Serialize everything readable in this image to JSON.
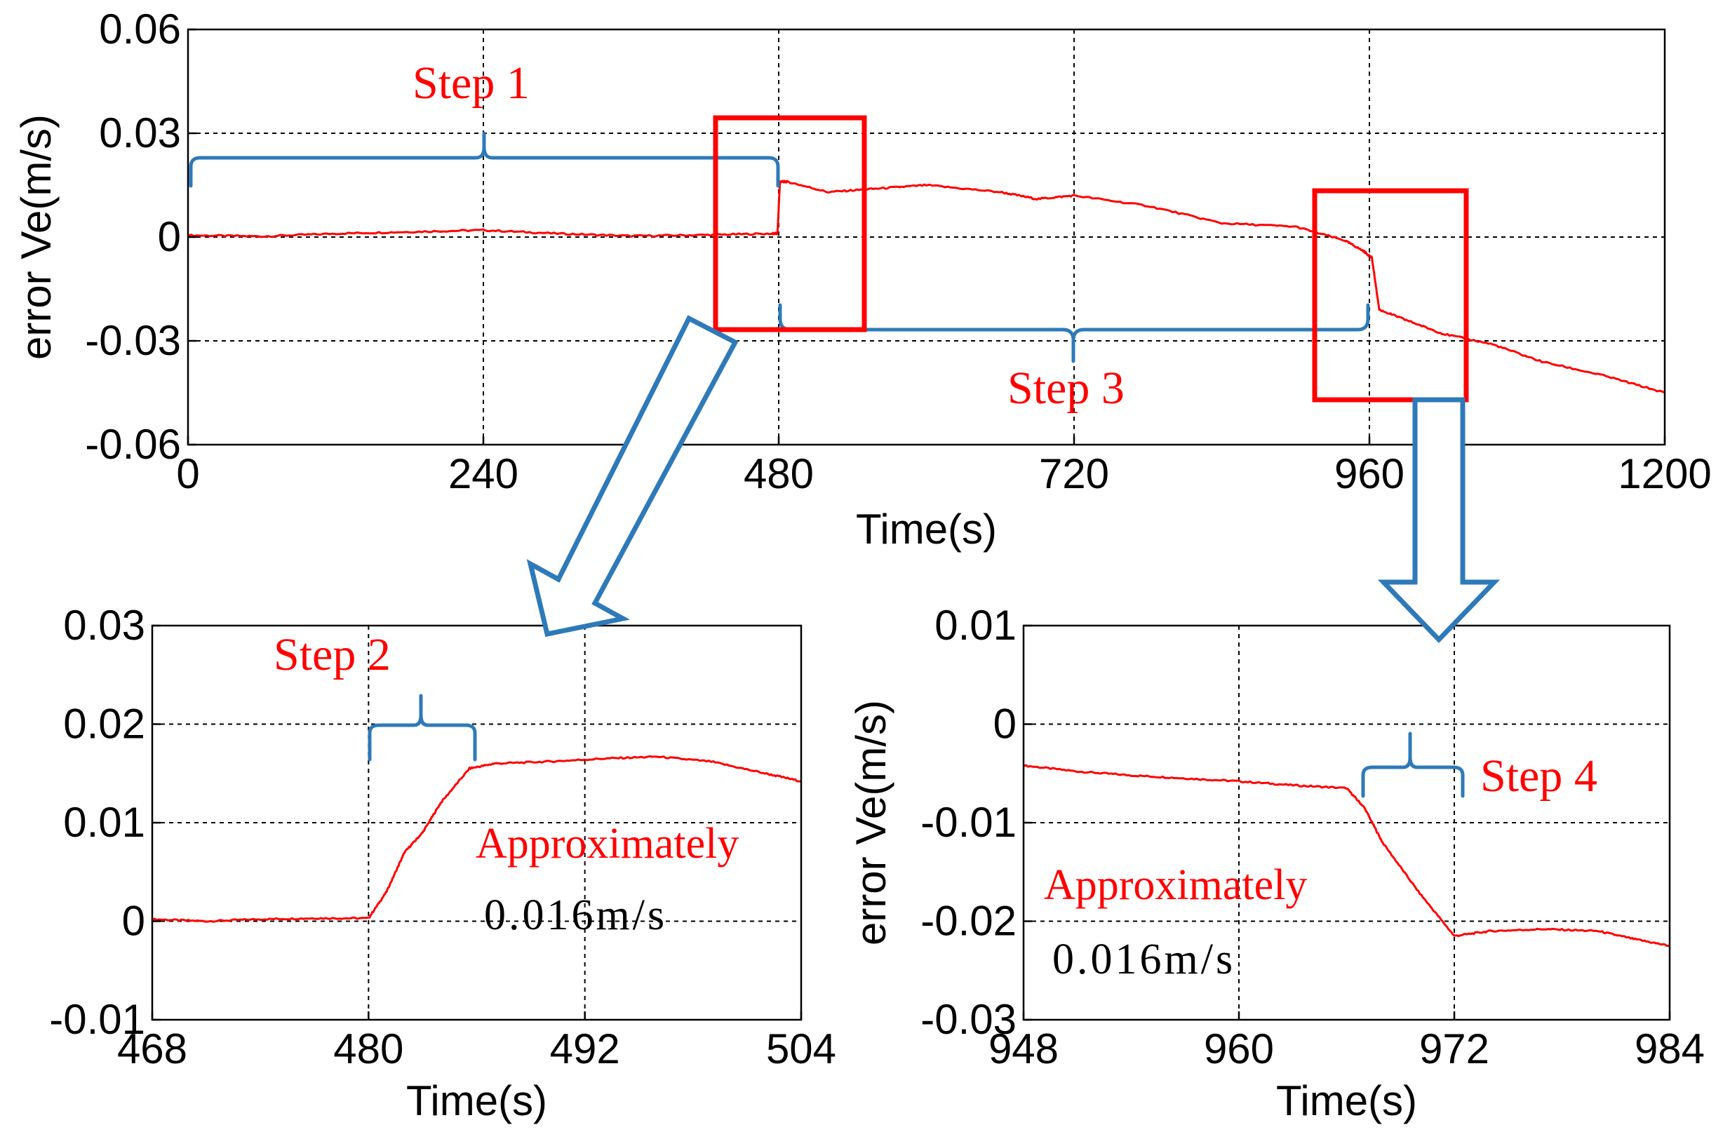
{
  "chart_data": [
    {
      "type": "line",
      "id": "main",
      "xlabel": "Time(s)",
      "ylabel": "error Ve(m/s)",
      "xlim": [
        0,
        1200
      ],
      "ylim": [
        -0.06,
        0.06
      ],
      "xticks": [
        0,
        240,
        480,
        720,
        960,
        1200
      ],
      "yticks": [
        -0.06,
        -0.03,
        0,
        0.03,
        0.06
      ],
      "xtick_labels": [
        "0",
        "240",
        "480",
        "720",
        "960",
        "1200"
      ],
      "ytick_labels": [
        "-0.06",
        "-0.03",
        "0",
        "0.03",
        "0.06"
      ],
      "grid": true,
      "series": [
        {
          "name": "error Ve",
          "color": "#ff0000",
          "x": [
            0,
            60,
            120,
            180,
            240,
            300,
            360,
            420,
            475,
            479,
            481,
            487,
            520,
            560,
            600,
            660,
            690,
            720,
            780,
            840,
            900,
            940,
            955,
            962,
            968,
            990,
            1020,
            1060,
            1100,
            1150,
            1200
          ],
          "y": [
            0.0005,
            0.0002,
            0.001,
            0.0015,
            0.002,
            0.001,
            0.0003,
            0.0006,
            0.001,
            0.001,
            0.016,
            0.016,
            0.013,
            0.014,
            0.015,
            0.013,
            0.011,
            0.012,
            0.009,
            0.004,
            0.003,
            -0.001,
            -0.004,
            -0.006,
            -0.021,
            -0.024,
            -0.028,
            -0.031,
            -0.036,
            -0.04,
            -0.045
          ]
        }
      ]
    },
    {
      "type": "line",
      "id": "zoom-left",
      "xlabel": "Time(s)",
      "ylabel": "",
      "xlim": [
        468,
        504
      ],
      "ylim": [
        -0.01,
        0.03
      ],
      "xticks": [
        468,
        480,
        492,
        504
      ],
      "yticks": [
        -0.01,
        0,
        0.01,
        0.02,
        0.03
      ],
      "xtick_labels": [
        "468",
        "480",
        "492",
        "504"
      ],
      "ytick_labels": [
        "-0.01",
        "0",
        "0.01",
        "0.02",
        "0.03"
      ],
      "grid": true,
      "series": [
        {
          "name": "error Ve",
          "color": "#ff0000",
          "x": [
            468,
            471,
            474,
            477,
            480,
            481,
            482,
            483,
            484,
            485.6,
            487,
            490,
            493,
            496,
            499,
            502,
            504
          ],
          "y": [
            0.0002,
            0.0,
            0.0002,
            0.0003,
            0.0003,
            0.003,
            0.007,
            0.009,
            0.012,
            0.0155,
            0.016,
            0.0162,
            0.0165,
            0.0167,
            0.0162,
            0.015,
            0.0142
          ]
        }
      ]
    },
    {
      "type": "line",
      "id": "zoom-right",
      "xlabel": "Time(s)",
      "ylabel": "error Ve(m/s)",
      "xlim": [
        948,
        984
      ],
      "ylim": [
        -0.03,
        0.01
      ],
      "xticks": [
        948,
        960,
        972,
        984
      ],
      "yticks": [
        -0.03,
        -0.02,
        -0.01,
        0,
        0.01
      ],
      "xtick_labels": [
        "948",
        "960",
        "972",
        "984"
      ],
      "ytick_labels": [
        "-0.03",
        "-0.02",
        "-0.01",
        "0",
        "0.01"
      ],
      "grid": true,
      "series": [
        {
          "name": "error Ve",
          "color": "#ff0000",
          "x": [
            948,
            951,
            954,
            957,
            960,
            963,
            966,
            967,
            968,
            970,
            972,
            974,
            977,
            980,
            982,
            984
          ],
          "y": [
            -0.0042,
            -0.0048,
            -0.0052,
            -0.0055,
            -0.0058,
            -0.0062,
            -0.0065,
            -0.0085,
            -0.012,
            -0.017,
            -0.0215,
            -0.021,
            -0.0208,
            -0.021,
            -0.0218,
            -0.0225
          ]
        }
      ]
    }
  ],
  "annotations": {
    "step1": "Step 1",
    "step2": "Step 2",
    "step3": "Step 3",
    "step4": "Step 4",
    "approx_left": "Approximately",
    "value_left": "0.016m/s",
    "approx_right": "Approximately",
    "value_right": "0.016m/s"
  },
  "colors": {
    "series": "#ff0000",
    "annotation_text": "#ff0000",
    "brace": "#2e7ab8",
    "highlight_box": "#ff0000"
  }
}
